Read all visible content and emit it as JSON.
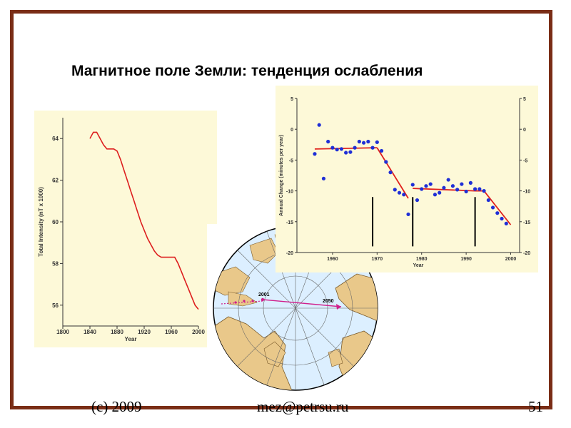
{
  "slide": {
    "title": "Магнитное поле Земли: тенденция ослабления",
    "footer_left": "(c) 2009",
    "footer_mid": "mez@petrsu.ru",
    "footer_right": "51",
    "frame_color": "#7a2d16",
    "panel_color": "#fdf9d8"
  },
  "chart_data": [
    {
      "type": "line",
      "xlabel": "Year",
      "ylabel": "Total Intensity (nT x 1000)",
      "xlim": [
        1800,
        2000
      ],
      "ylim": [
        55,
        65
      ],
      "x_ticks": [
        1800,
        1840,
        1880,
        1920,
        1960,
        2000
      ],
      "y_ticks": [
        56,
        58,
        60,
        62,
        64
      ],
      "line_color": "#dd1f1f",
      "x": [
        1840,
        1845,
        1850,
        1855,
        1860,
        1865,
        1870,
        1875,
        1880,
        1885,
        1890,
        1895,
        1900,
        1905,
        1910,
        1915,
        1920,
        1925,
        1930,
        1935,
        1940,
        1945,
        1950,
        1955,
        1960,
        1965,
        1970,
        1975,
        1980,
        1985,
        1990,
        1995,
        2000
      ],
      "y": [
        64.0,
        64.3,
        64.3,
        64.0,
        63.7,
        63.5,
        63.5,
        63.5,
        63.4,
        63.0,
        62.5,
        62.0,
        61.5,
        61.0,
        60.5,
        60.0,
        59.6,
        59.2,
        58.9,
        58.6,
        58.4,
        58.3,
        58.3,
        58.3,
        58.3,
        58.3,
        58.0,
        57.6,
        57.2,
        56.8,
        56.4,
        56.0,
        55.8
      ]
    },
    {
      "type": "scatter",
      "xlabel": "Year",
      "ylabel": "Annual Change (minutes per year)",
      "xlim": [
        1952,
        2002
      ],
      "ylim": [
        -20,
        5
      ],
      "x_ticks": [
        1960,
        1970,
        1980,
        1990,
        2000
      ],
      "y_ticks": [
        5,
        0,
        -5,
        -10,
        -15,
        -20
      ],
      "point_color": "#1f2fd6",
      "trend_color": "#e0201c",
      "points": [
        [
          1956,
          -4
        ],
        [
          1957,
          0.7
        ],
        [
          1958,
          -8
        ],
        [
          1959,
          -2
        ],
        [
          1960,
          -3
        ],
        [
          1961,
          -3.3
        ],
        [
          1962,
          -3.2
        ],
        [
          1963,
          -3.8
        ],
        [
          1964,
          -3.7
        ],
        [
          1965,
          -3
        ],
        [
          1966,
          -2
        ],
        [
          1967,
          -2.2
        ],
        [
          1968,
          -2
        ],
        [
          1969,
          -3
        ],
        [
          1970,
          -2.1
        ],
        [
          1971,
          -3.5
        ],
        [
          1972,
          -5.3
        ],
        [
          1973,
          -7
        ],
        [
          1974,
          -9.8
        ],
        [
          1975,
          -10.3
        ],
        [
          1976,
          -10.6
        ],
        [
          1977,
          -13.8
        ],
        [
          1978,
          -9
        ],
        [
          1979,
          -11.5
        ],
        [
          1980,
          -9.7
        ],
        [
          1981,
          -9.2
        ],
        [
          1982,
          -8.9
        ],
        [
          1983,
          -10.6
        ],
        [
          1984,
          -10.3
        ],
        [
          1985,
          -9.5
        ],
        [
          1986,
          -8.2
        ],
        [
          1987,
          -9.2
        ],
        [
          1988,
          -9.8
        ],
        [
          1989,
          -8.9
        ],
        [
          1990,
          -10.1
        ],
        [
          1991,
          -8.7
        ],
        [
          1992,
          -9.7
        ],
        [
          1993,
          -9.7
        ],
        [
          1994,
          -10
        ],
        [
          1995,
          -11.5
        ],
        [
          1996,
          -12.7
        ],
        [
          1997,
          -13.6
        ],
        [
          1998,
          -14.5
        ],
        [
          1999,
          -15.3
        ]
      ],
      "trend": [
        [
          [
            1956,
            -3.2
          ],
          [
            1970,
            -3.0
          ]
        ],
        [
          [
            1970,
            -3.0
          ],
          [
            1977,
            -11.2
          ]
        ],
        [
          [
            1978,
            -9.6
          ],
          [
            1992,
            -10.0
          ]
        ],
        [
          [
            1992,
            -10.0
          ],
          [
            1994,
            -10.0
          ]
        ],
        [
          [
            1994,
            -10.0
          ],
          [
            2000,
            -15.5
          ]
        ]
      ],
      "markers": [
        1969,
        1978,
        1992
      ]
    },
    {
      "type": "map",
      "labels": [
        "2001",
        "2050"
      ]
    }
  ]
}
